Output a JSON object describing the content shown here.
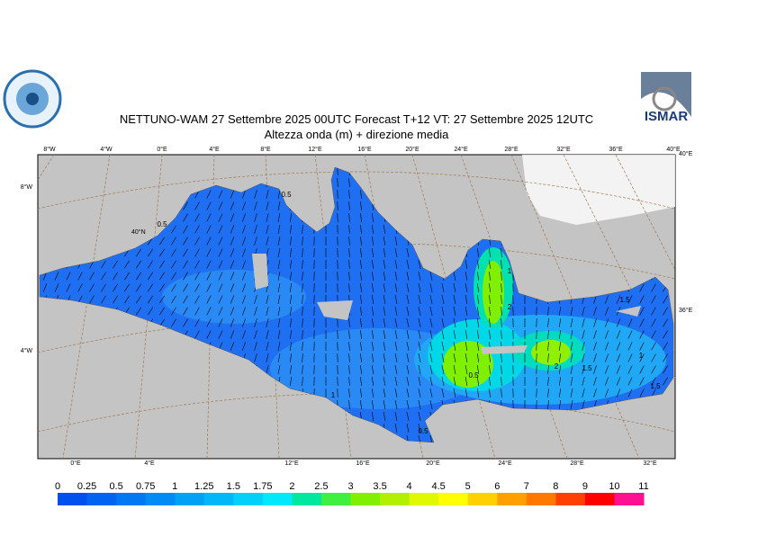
{
  "header": {
    "title": "NETTUNO-WAM  27 Settembre 2025 00UTC Forecast T+12 VT: 27 Settembre 2025 12UTC",
    "subtitle": "Altezza onda (m) + direzione media"
  },
  "logos": {
    "right_text": "ISMAR"
  },
  "graticule": {
    "top": [
      "8°W",
      "4°W",
      "0°E",
      "4°E",
      "8°E",
      "12°E",
      "16°E",
      "20°E",
      "24°E",
      "28°E",
      "32°E",
      "36°E",
      "40°E"
    ],
    "bottom": [
      "0°E",
      "4°E",
      "12°E",
      "16°E",
      "20°E",
      "24°E",
      "28°E",
      "32°E"
    ],
    "left": [
      "8°W",
      "4°W"
    ],
    "right": [
      "40°E",
      "36°E"
    ],
    "inner": [
      "40°N"
    ]
  },
  "contour_labels": [
    "0.5",
    "0.5",
    "0.5",
    "1",
    "2",
    "2",
    "1.5",
    "1",
    "1.5",
    "1.5",
    "1",
    "0.5"
  ],
  "colorbar": {
    "labels": [
      "0",
      "0.25",
      "0.5",
      "0.75",
      "1",
      "1.25",
      "1.5",
      "1.75",
      "2",
      "2.5",
      "3",
      "3.5",
      "4",
      "4.5",
      "5",
      "6",
      "7",
      "8",
      "9",
      "10",
      "11"
    ],
    "colors": [
      "#0050ee",
      "#0064f0",
      "#0078f2",
      "#008cf4",
      "#00a2f6",
      "#00b8f8",
      "#00d0fa",
      "#00e8fc",
      "#00e8a0",
      "#40f040",
      "#80f000",
      "#b0f000",
      "#e0f800",
      "#ffff00",
      "#ffd000",
      "#ffa000",
      "#ff7800",
      "#ff4000",
      "#ff0000",
      "#ff1090"
    ]
  }
}
